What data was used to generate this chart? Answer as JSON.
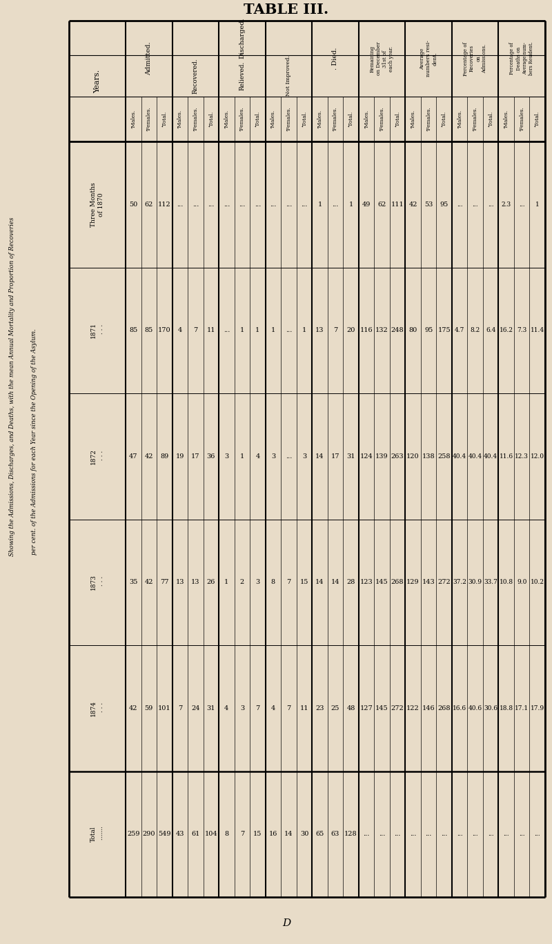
{
  "title": "TABLE III.",
  "subtitle1": "Showing the Admissions, Discharges, and Deaths, with the mean Annual Mortality and Proportion of Recoveries",
  "subtitle2": "per cent. of the Admissions for each Year since the Opening of the Asylum.",
  "bg_color": "#e8dcc8",
  "admitted": {
    "males": [
      50,
      85,
      47,
      35,
      42,
      259
    ],
    "females": [
      62,
      85,
      42,
      42,
      59,
      290
    ],
    "total": [
      112,
      170,
      89,
      77,
      101,
      549
    ]
  },
  "recovered": {
    "males": [
      "...",
      4,
      19,
      13,
      7,
      43
    ],
    "females": [
      "...",
      7,
      17,
      13,
      24,
      61
    ],
    "total": [
      "...",
      11,
      36,
      26,
      31,
      104
    ]
  },
  "relieved": {
    "males": [
      "...",
      "...",
      3,
      1,
      4,
      8
    ],
    "females": [
      "...",
      1,
      1,
      2,
      3,
      7
    ],
    "total": [
      "...",
      1,
      4,
      3,
      7,
      15
    ]
  },
  "not_improved": {
    "males": [
      "...",
      1,
      3,
      8,
      4,
      16
    ],
    "females": [
      "...",
      "...",
      "...",
      7,
      7,
      14
    ],
    "total": [
      "...",
      1,
      3,
      15,
      11,
      30
    ]
  },
  "died": {
    "males": [
      1,
      13,
      14,
      14,
      23,
      65
    ],
    "females": [
      "...",
      7,
      17,
      14,
      25,
      63
    ],
    "total": [
      1,
      20,
      31,
      28,
      48,
      128
    ]
  },
  "remaining": {
    "males": [
      49,
      116,
      124,
      123,
      127,
      "..."
    ],
    "females": [
      62,
      132,
      139,
      145,
      145,
      "..."
    ],
    "total": [
      111,
      248,
      263,
      268,
      272,
      "..."
    ]
  },
  "avg_resident": {
    "males": [
      42,
      80,
      120,
      129,
      122,
      "..."
    ],
    "females": [
      53,
      95,
      138,
      143,
      146,
      "..."
    ],
    "total": [
      95,
      175,
      258,
      272,
      268,
      "..."
    ]
  },
  "pct_recoveries": {
    "males": [
      "...",
      4.7,
      40.4,
      37.2,
      16.6,
      "..."
    ],
    "females": [
      "...",
      8.2,
      40.4,
      30.9,
      40.6,
      "..."
    ],
    "total": [
      "...",
      6.4,
      40.4,
      33.7,
      30.6,
      "..."
    ]
  },
  "pct_deaths_resident": {
    "males": [
      2.3,
      16.2,
      11.6,
      10.8,
      18.8,
      "..."
    ],
    "females": [
      "...",
      7.3,
      12.3,
      9.0,
      17.1,
      "..."
    ],
    "total": [
      1,
      11.4,
      12.0,
      10.2,
      17.9,
      "..."
    ]
  }
}
